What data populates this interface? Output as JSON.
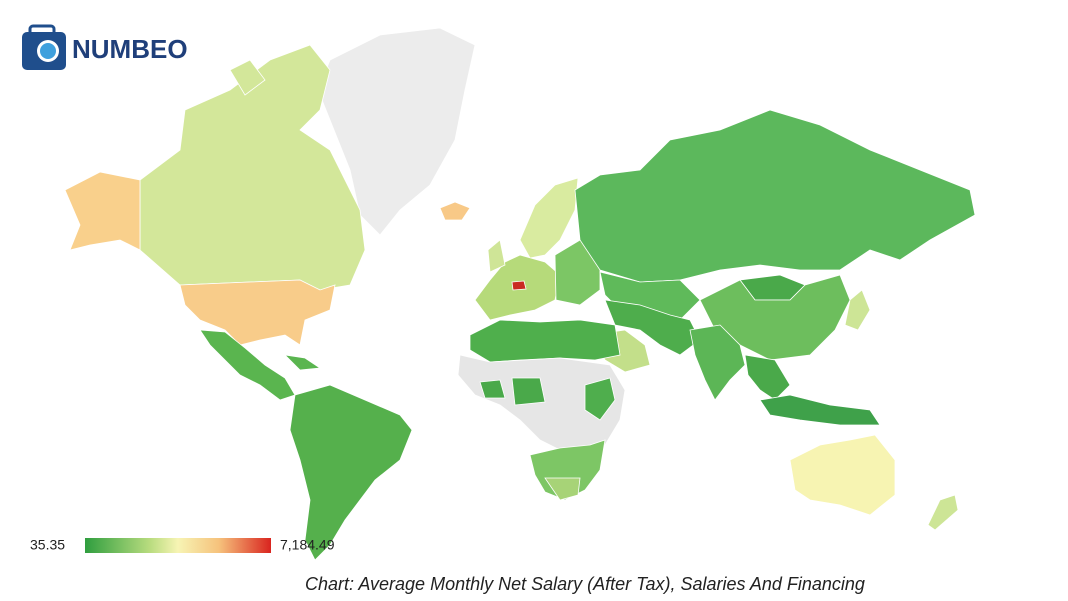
{
  "logo": {
    "text": "NUMBEO"
  },
  "legend": {
    "min": 35.35,
    "max": {
      "value": 7184.49,
      "label": "7,184.49"
    }
  },
  "caption": "Chart: Average Monthly Net Salary (After Tax), Salaries And Financing"
}
